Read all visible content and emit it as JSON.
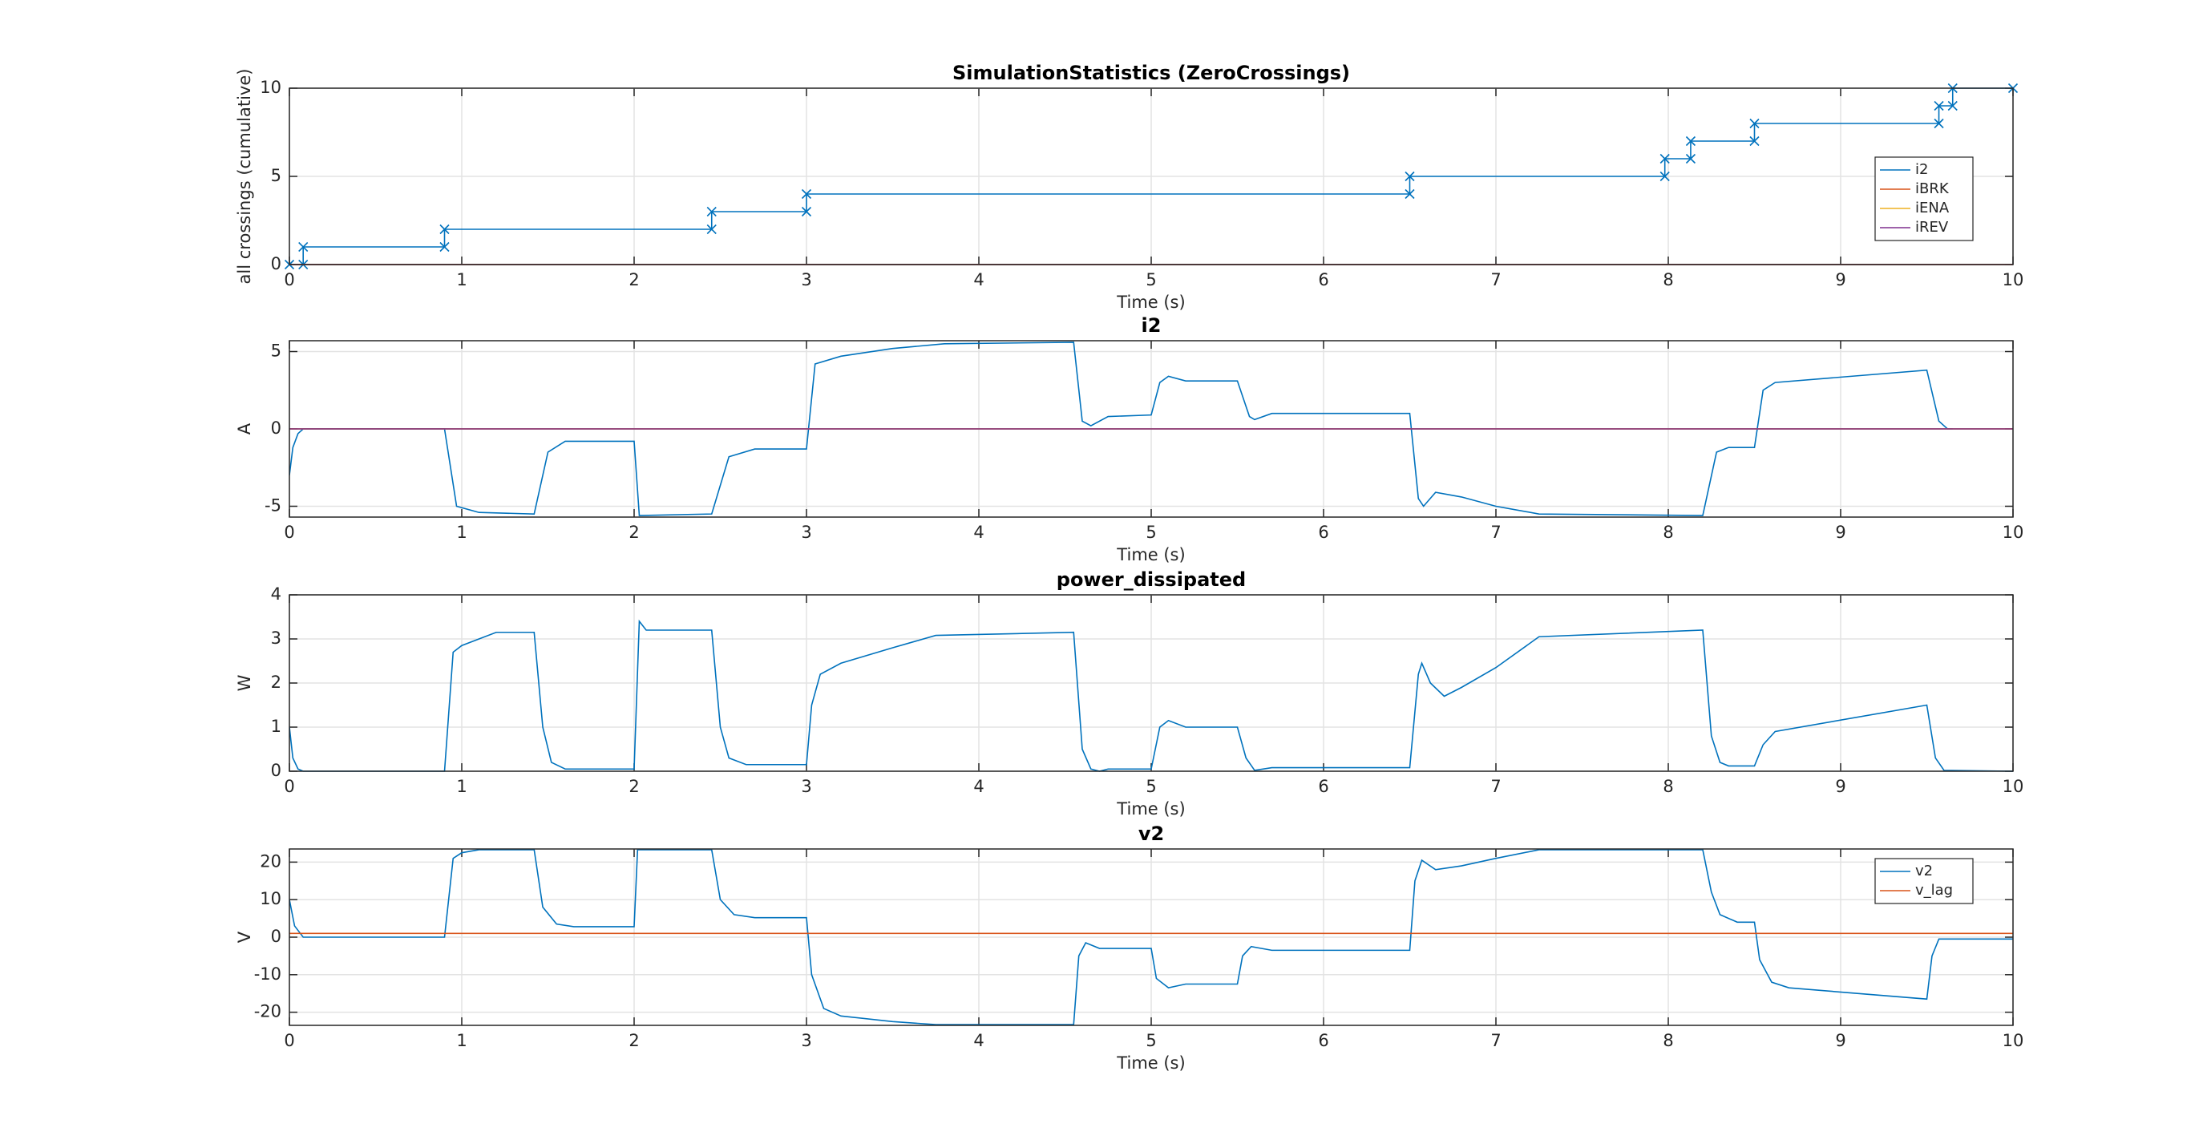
{
  "chart_data": [
    {
      "type": "line",
      "title": "SimulationStatistics (ZeroCrossings)",
      "xlabel": "Time (s)",
      "ylabel": "all crossings (cumulative)",
      "xlim": [
        0,
        10
      ],
      "xticks": [
        0,
        1,
        2,
        3,
        4,
        5,
        6,
        7,
        8,
        9,
        10
      ],
      "ylim": [
        0,
        10
      ],
      "yticks": [
        0,
        5,
        10
      ],
      "grid": true,
      "legend": "east",
      "series": [
        {
          "name": "i2",
          "color": "#0072bd",
          "marker": "x",
          "x": [
            0,
            0.08,
            0.08,
            0.9,
            0.9,
            2.45,
            2.45,
            3.0,
            3.0,
            6.5,
            6.5,
            7.98,
            7.98,
            8.13,
            8.13,
            8.5,
            8.5,
            9.57,
            9.57,
            9.65,
            9.65,
            10
          ],
          "values": [
            0,
            0,
            1,
            1,
            2,
            2,
            3,
            3,
            4,
            4,
            5,
            5,
            6,
            6,
            7,
            7,
            8,
            8,
            9,
            9,
            10,
            10
          ]
        },
        {
          "name": "iBRK",
          "color": "#d95319",
          "x": [
            0,
            10
          ],
          "values": [
            0,
            0
          ]
        },
        {
          "name": "iENA",
          "color": "#edb120",
          "x": [
            0,
            10
          ],
          "values": [
            0,
            0
          ]
        },
        {
          "name": "iREV",
          "color": "#7e2f8e",
          "x": [
            0,
            10
          ],
          "values": [
            0,
            0
          ]
        }
      ]
    },
    {
      "type": "line",
      "title": "i2",
      "xlabel": "Time (s)",
      "ylabel": "A",
      "xlim": [
        0,
        10
      ],
      "xticks": [
        0,
        1,
        2,
        3,
        4,
        5,
        6,
        7,
        8,
        9,
        10
      ],
      "ylim": [
        -5.7,
        5.7
      ],
      "yticks": [
        -5,
        0,
        5
      ],
      "grid": true,
      "series": [
        {
          "color": "#0072bd",
          "x": [
            0,
            0.02,
            0.05,
            0.08,
            0.9,
            0.97,
            1.1,
            1.42,
            1.5,
            1.6,
            2.0,
            2.03,
            2.45,
            2.55,
            2.7,
            3.0,
            3.05,
            3.2,
            3.5,
            3.8,
            4.55,
            4.6,
            4.65,
            4.75,
            5.0,
            5.05,
            5.1,
            5.2,
            5.5,
            5.57,
            5.6,
            5.7,
            6.5,
            6.55,
            6.58,
            6.65,
            6.8,
            7.0,
            7.25,
            8.2,
            8.28,
            8.35,
            8.5,
            8.55,
            8.62,
            9.5,
            9.57,
            9.62,
            9.65
          ],
          "values": [
            -3,
            -1.2,
            -0.3,
            0,
            0,
            -5,
            -5.4,
            -5.5,
            -1.5,
            -0.8,
            -0.8,
            -5.6,
            -5.5,
            -1.8,
            -1.3,
            -1.3,
            4.2,
            4.7,
            5.2,
            5.5,
            5.6,
            0.5,
            0.2,
            0.8,
            0.9,
            3.0,
            3.4,
            3.1,
            3.1,
            0.8,
            0.6,
            1.0,
            1.0,
            -4.5,
            -5.0,
            -4.1,
            -4.4,
            -5.0,
            -5.5,
            -5.6,
            -1.5,
            -1.2,
            -1.2,
            2.5,
            3.0,
            3.8,
            0.5,
            0,
            0
          ]
        },
        {
          "color": "#d95319",
          "x": [
            0,
            10
          ],
          "values": [
            0,
            0
          ]
        },
        {
          "color": "#edb120",
          "x": [
            0,
            10
          ],
          "values": [
            0,
            0
          ]
        },
        {
          "color": "#7e2f8e",
          "x": [
            0,
            10
          ],
          "values": [
            0,
            0
          ]
        }
      ]
    },
    {
      "type": "line",
      "title": "power_dissipated",
      "xlabel": "Time (s)",
      "ylabel": "W",
      "xlim": [
        0,
        10
      ],
      "xticks": [
        0,
        1,
        2,
        3,
        4,
        5,
        6,
        7,
        8,
        9,
        10
      ],
      "ylim": [
        0,
        4
      ],
      "yticks": [
        0,
        1,
        2,
        3,
        4
      ],
      "grid": true,
      "series": [
        {
          "color": "#0072bd",
          "x": [
            0,
            0.02,
            0.05,
            0.08,
            0.9,
            0.95,
            1.0,
            1.1,
            1.2,
            1.42,
            1.47,
            1.52,
            1.6,
            2.0,
            2.03,
            2.07,
            2.45,
            2.5,
            2.55,
            2.65,
            3.0,
            3.03,
            3.08,
            3.2,
            3.5,
            3.75,
            4.55,
            4.6,
            4.65,
            4.7,
            4.75,
            5.0,
            5.05,
            5.1,
            5.2,
            5.5,
            5.55,
            5.6,
            5.7,
            6.5,
            6.55,
            6.57,
            6.62,
            6.7,
            6.8,
            7.0,
            7.25,
            8.2,
            8.25,
            8.3,
            8.35,
            8.5,
            8.55,
            8.62,
            9.5,
            9.55,
            9.6,
            10
          ],
          "values": [
            1.0,
            0.3,
            0.05,
            0,
            0,
            2.7,
            2.85,
            3.0,
            3.15,
            3.15,
            1.0,
            0.2,
            0.05,
            0.05,
            3.4,
            3.2,
            3.2,
            1.0,
            0.3,
            0.15,
            0.15,
            1.5,
            2.2,
            2.45,
            2.8,
            3.08,
            3.15,
            0.5,
            0.05,
            0,
            0.05,
            0.05,
            1.0,
            1.15,
            1.0,
            1.0,
            0.3,
            0.02,
            0.08,
            0.08,
            2.2,
            2.45,
            2.0,
            1.7,
            1.9,
            2.35,
            3.05,
            3.2,
            0.8,
            0.2,
            0.12,
            0.12,
            0.6,
            0.9,
            1.5,
            0.3,
            0.02,
            0
          ]
        }
      ]
    },
    {
      "type": "line",
      "title": "v2",
      "xlabel": "Time (s)",
      "ylabel": "V",
      "xlim": [
        0,
        10
      ],
      "xticks": [
        0,
        1,
        2,
        3,
        4,
        5,
        6,
        7,
        8,
        9,
        10
      ],
      "ylim": [
        -23.5,
        23.5
      ],
      "yticks": [
        -20,
        -10,
        0,
        10,
        20
      ],
      "grid": true,
      "legend": "northeast",
      "series": [
        {
          "name": "v2",
          "color": "#0072bd",
          "x": [
            0,
            0.03,
            0.08,
            0.9,
            0.95,
            1.0,
            1.1,
            1.42,
            1.47,
            1.55,
            1.65,
            2.0,
            2.02,
            2.45,
            2.5,
            2.58,
            2.7,
            3.0,
            3.03,
            3.1,
            3.2,
            3.5,
            3.75,
            4.55,
            4.58,
            4.62,
            4.7,
            5.0,
            5.03,
            5.1,
            5.2,
            5.5,
            5.53,
            5.58,
            5.7,
            6.5,
            6.53,
            6.57,
            6.65,
            6.8,
            7.0,
            7.25,
            8.2,
            8.25,
            8.3,
            8.4,
            8.5,
            8.53,
            8.6,
            8.7,
            9.5,
            9.53,
            9.57,
            10
          ],
          "values": [
            10,
            3,
            0,
            0,
            21,
            22.5,
            23.3,
            23.3,
            8,
            3.5,
            2.8,
            2.8,
            23.3,
            23.3,
            10,
            6,
            5.2,
            5.2,
            -10,
            -19,
            -21,
            -22.5,
            -23.3,
            -23.3,
            -5,
            -1.5,
            -3,
            -3,
            -11,
            -13.5,
            -12.5,
            -12.5,
            -5,
            -2.5,
            -3.5,
            -3.5,
            15,
            20.5,
            18,
            19,
            21,
            23.3,
            23.3,
            12,
            6,
            4,
            4,
            -6,
            -12,
            -13.5,
            -16.5,
            -5,
            -0.5,
            -0.5
          ]
        },
        {
          "name": "v_lag",
          "color": "#d95319",
          "x": [
            0,
            10
          ],
          "values": [
            1,
            1
          ]
        }
      ]
    }
  ]
}
